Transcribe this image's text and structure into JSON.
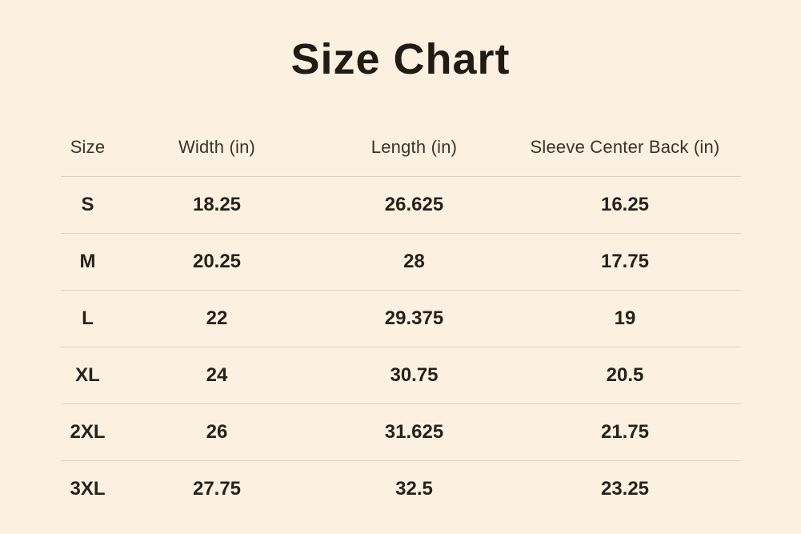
{
  "page": {
    "title": "Size Chart"
  },
  "colors": {
    "background": "#fcf0e0",
    "title_text": "#201b15",
    "header_text": "#3a342c",
    "cell_text": "#26211b",
    "divider": "#ddd1c1"
  },
  "chart_data": {
    "type": "table",
    "title": "Size Chart",
    "columns": [
      "Size",
      "Width (in)",
      "Length (in)",
      "Sleeve Center Back (in)"
    ],
    "rows": [
      [
        "S",
        "18.25",
        "26.625",
        "16.25"
      ],
      [
        "M",
        "20.25",
        "28",
        "17.75"
      ],
      [
        "L",
        "22",
        "29.375",
        "19"
      ],
      [
        "XL",
        "24",
        "30.75",
        "20.5"
      ],
      [
        "2XL",
        "26",
        "31.625",
        "21.75"
      ],
      [
        "3XL",
        "27.75",
        "32.5",
        "23.25"
      ]
    ]
  }
}
